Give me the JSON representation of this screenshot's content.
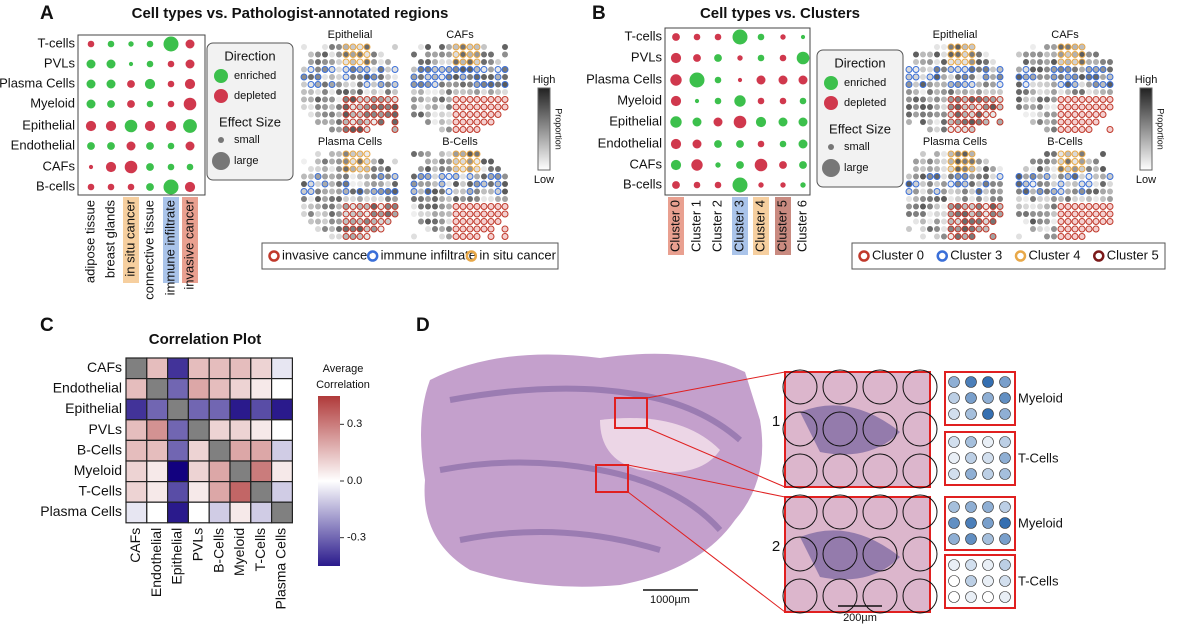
{
  "panel_a": {
    "label": "A",
    "title": "Cell types vs. Pathologist-annotated regions",
    "rows": [
      "T-cells",
      "PVLs",
      "Plasma Cells",
      "Myeloid",
      "Epithelial",
      "Endothelial",
      "CAFs",
      "B-cells"
    ],
    "columns": [
      "adipose tissue",
      "breast glands",
      "in situ cancer",
      "connective tissue",
      "immune infiltrate",
      "invasive cancer"
    ],
    "column_colors": [
      null,
      null,
      "#f6cf9f",
      null,
      "#aac4ea",
      "#e9a090"
    ],
    "values": [
      [
        -0.3,
        0.3,
        0.2,
        0.3,
        1.0,
        -0.5
      ],
      [
        0.5,
        0.5,
        0.1,
        0.3,
        -0.3,
        -0.5
      ],
      [
        0.5,
        0.5,
        -0.4,
        0.6,
        -0.3,
        -0.6
      ],
      [
        0.5,
        0.4,
        -0.4,
        0.3,
        -0.3,
        -0.8
      ],
      [
        -0.6,
        -0.6,
        0.8,
        -0.6,
        -0.6,
        0.9
      ],
      [
        0.4,
        0.4,
        -0.5,
        0.4,
        0.3,
        -0.5
      ],
      [
        -0.1,
        -0.6,
        -0.8,
        0.4,
        0.3,
        0.3
      ],
      [
        -0.3,
        -0.3,
        -0.3,
        0.4,
        1.0,
        -0.6
      ]
    ],
    "enriched_color": "#3cc04c",
    "depleted_color": "#d0384d",
    "legend": {
      "direction_title": "Direction",
      "enriched": "enriched",
      "depleted": "depleted",
      "effect_title": "Effect Size",
      "small": "small",
      "large": "large"
    },
    "maps": [
      "Epithelial",
      "CAFs",
      "Plasma Cells",
      "B-Cells"
    ],
    "colorbar": {
      "high": "High",
      "low": "Low",
      "title": "Proportion"
    },
    "map_legend": [
      {
        "label": "invasive cancer",
        "color": "#c0392b"
      },
      {
        "label": "immune infiltrate",
        "color": "#3a6fd8"
      },
      {
        "label": "in situ cancer",
        "color": "#e8a848"
      }
    ]
  },
  "panel_b": {
    "label": "B",
    "title": "Cell types vs. Clusters",
    "rows": [
      "T-cells",
      "PVLs",
      "Plasma Cells",
      "Myeloid",
      "Epithelial",
      "Endothelial",
      "CAFs",
      "B-cells"
    ],
    "columns": [
      "Cluster 0",
      "Cluster 1",
      "Cluster 2",
      "Cluster 3",
      "Cluster 4",
      "Cluster 5",
      "Cluster 6"
    ],
    "column_colors": [
      "#e9a090",
      null,
      null,
      "#aac4ea",
      "#f6cf9f",
      "#c98a80",
      null
    ],
    "values": [
      [
        -0.4,
        -0.3,
        -0.3,
        1.0,
        0.3,
        -0.2,
        0.1
      ],
      [
        -0.6,
        -0.4,
        0.4,
        -0.2,
        0.3,
        -0.3,
        0.8
      ],
      [
        -0.7,
        1.0,
        0.3,
        -0.1,
        -0.5,
        -0.5,
        -0.5
      ],
      [
        -0.6,
        0.1,
        0.3,
        0.7,
        -0.3,
        -0.3,
        0.3
      ],
      [
        0.7,
        0.5,
        -0.5,
        -0.8,
        0.6,
        0.5,
        0.5
      ],
      [
        -0.6,
        -0.5,
        0.4,
        0.4,
        -0.3,
        0.3,
        0.5
      ],
      [
        0.6,
        -0.7,
        0.2,
        0.4,
        -0.8,
        -0.4,
        0.4
      ],
      [
        -0.4,
        -0.3,
        -0.3,
        1.0,
        -0.2,
        -0.2,
        0.2
      ]
    ],
    "enriched_color": "#3cc04c",
    "depleted_color": "#d0384d",
    "legend": {
      "direction_title": "Direction",
      "enriched": "enriched",
      "depleted": "depleted",
      "effect_title": "Effect Size",
      "small": "small",
      "large": "large"
    },
    "maps": [
      "Epithelial",
      "CAFs",
      "Plasma Cells",
      "B-Cells"
    ],
    "colorbar": {
      "high": "High",
      "low": "Low",
      "title": "Proportion"
    },
    "map_legend": [
      {
        "label": "Cluster 0",
        "color": "#c0392b"
      },
      {
        "label": "Cluster 3",
        "color": "#3a6fd8"
      },
      {
        "label": "Cluster 4",
        "color": "#e8a848"
      },
      {
        "label": "Cluster 5",
        "color": "#7b1a1a"
      }
    ]
  },
  "panel_c": {
    "label": "C",
    "title": "Correlation Plot",
    "labels": [
      "CAFs",
      "Endothelial",
      "Epithelial",
      "PVLs",
      "B-Cells",
      "Myeloid",
      "T-Cells",
      "Plasma Cells"
    ],
    "values": [
      [
        null,
        0.15,
        -0.4,
        0.15,
        0.15,
        0.15,
        0.1,
        -0.05
      ],
      [
        0.15,
        null,
        -0.3,
        0.2,
        0.15,
        0.1,
        0.05,
        0.0
      ],
      [
        -0.4,
        -0.3,
        null,
        -0.3,
        -0.3,
        -0.45,
        -0.35,
        -0.45
      ],
      [
        0.15,
        0.25,
        -0.3,
        null,
        0.1,
        0.1,
        0.05,
        0.0
      ],
      [
        0.15,
        0.15,
        -0.3,
        0.1,
        null,
        0.2,
        0.2,
        -0.1
      ],
      [
        0.1,
        0.05,
        -0.5,
        0.1,
        0.2,
        null,
        0.3,
        0.05
      ],
      [
        0.1,
        0.05,
        -0.35,
        0.05,
        0.2,
        0.35,
        null,
        -0.1
      ],
      [
        -0.05,
        0.0,
        -0.45,
        0.0,
        -0.1,
        0.05,
        -0.1,
        null
      ]
    ],
    "clim": [
      -0.45,
      0.45
    ],
    "ticks": [
      0.3,
      {
        "value": 0,
        "label": "0.0"
      },
      -0.3
    ],
    "colorbar_title": [
      "Average",
      "Correlation"
    ]
  },
  "panel_d": {
    "label": "D",
    "insets": [
      "1",
      "2"
    ],
    "scale_large": "1000µm",
    "scale_small": "200µm",
    "grids": [
      {
        "name": "Myeloid",
        "values": [
          [
            0.5,
            0.8,
            0.9,
            0.6
          ],
          [
            0.3,
            0.6,
            0.5,
            0.7
          ],
          [
            0.2,
            0.4,
            0.9,
            0.5
          ]
        ]
      },
      {
        "name": "T-Cells",
        "values": [
          [
            0.2,
            0.4,
            0.1,
            0.3
          ],
          [
            0.1,
            0.3,
            0.2,
            0.5
          ],
          [
            0.2,
            0.5,
            0.3,
            0.4
          ]
        ]
      },
      {
        "name": "Myeloid",
        "values": [
          [
            0.4,
            0.5,
            0.5,
            0.3
          ],
          [
            0.7,
            0.8,
            0.6,
            0.9
          ],
          [
            0.5,
            0.7,
            0.4,
            0.6
          ]
        ]
      },
      {
        "name": "T-Cells",
        "values": [
          [
            0.1,
            0.2,
            0.1,
            0.3
          ],
          [
            0.0,
            0.3,
            0.1,
            0.2
          ],
          [
            0.0,
            0.1,
            0.0,
            0.1
          ]
        ]
      }
    ]
  }
}
